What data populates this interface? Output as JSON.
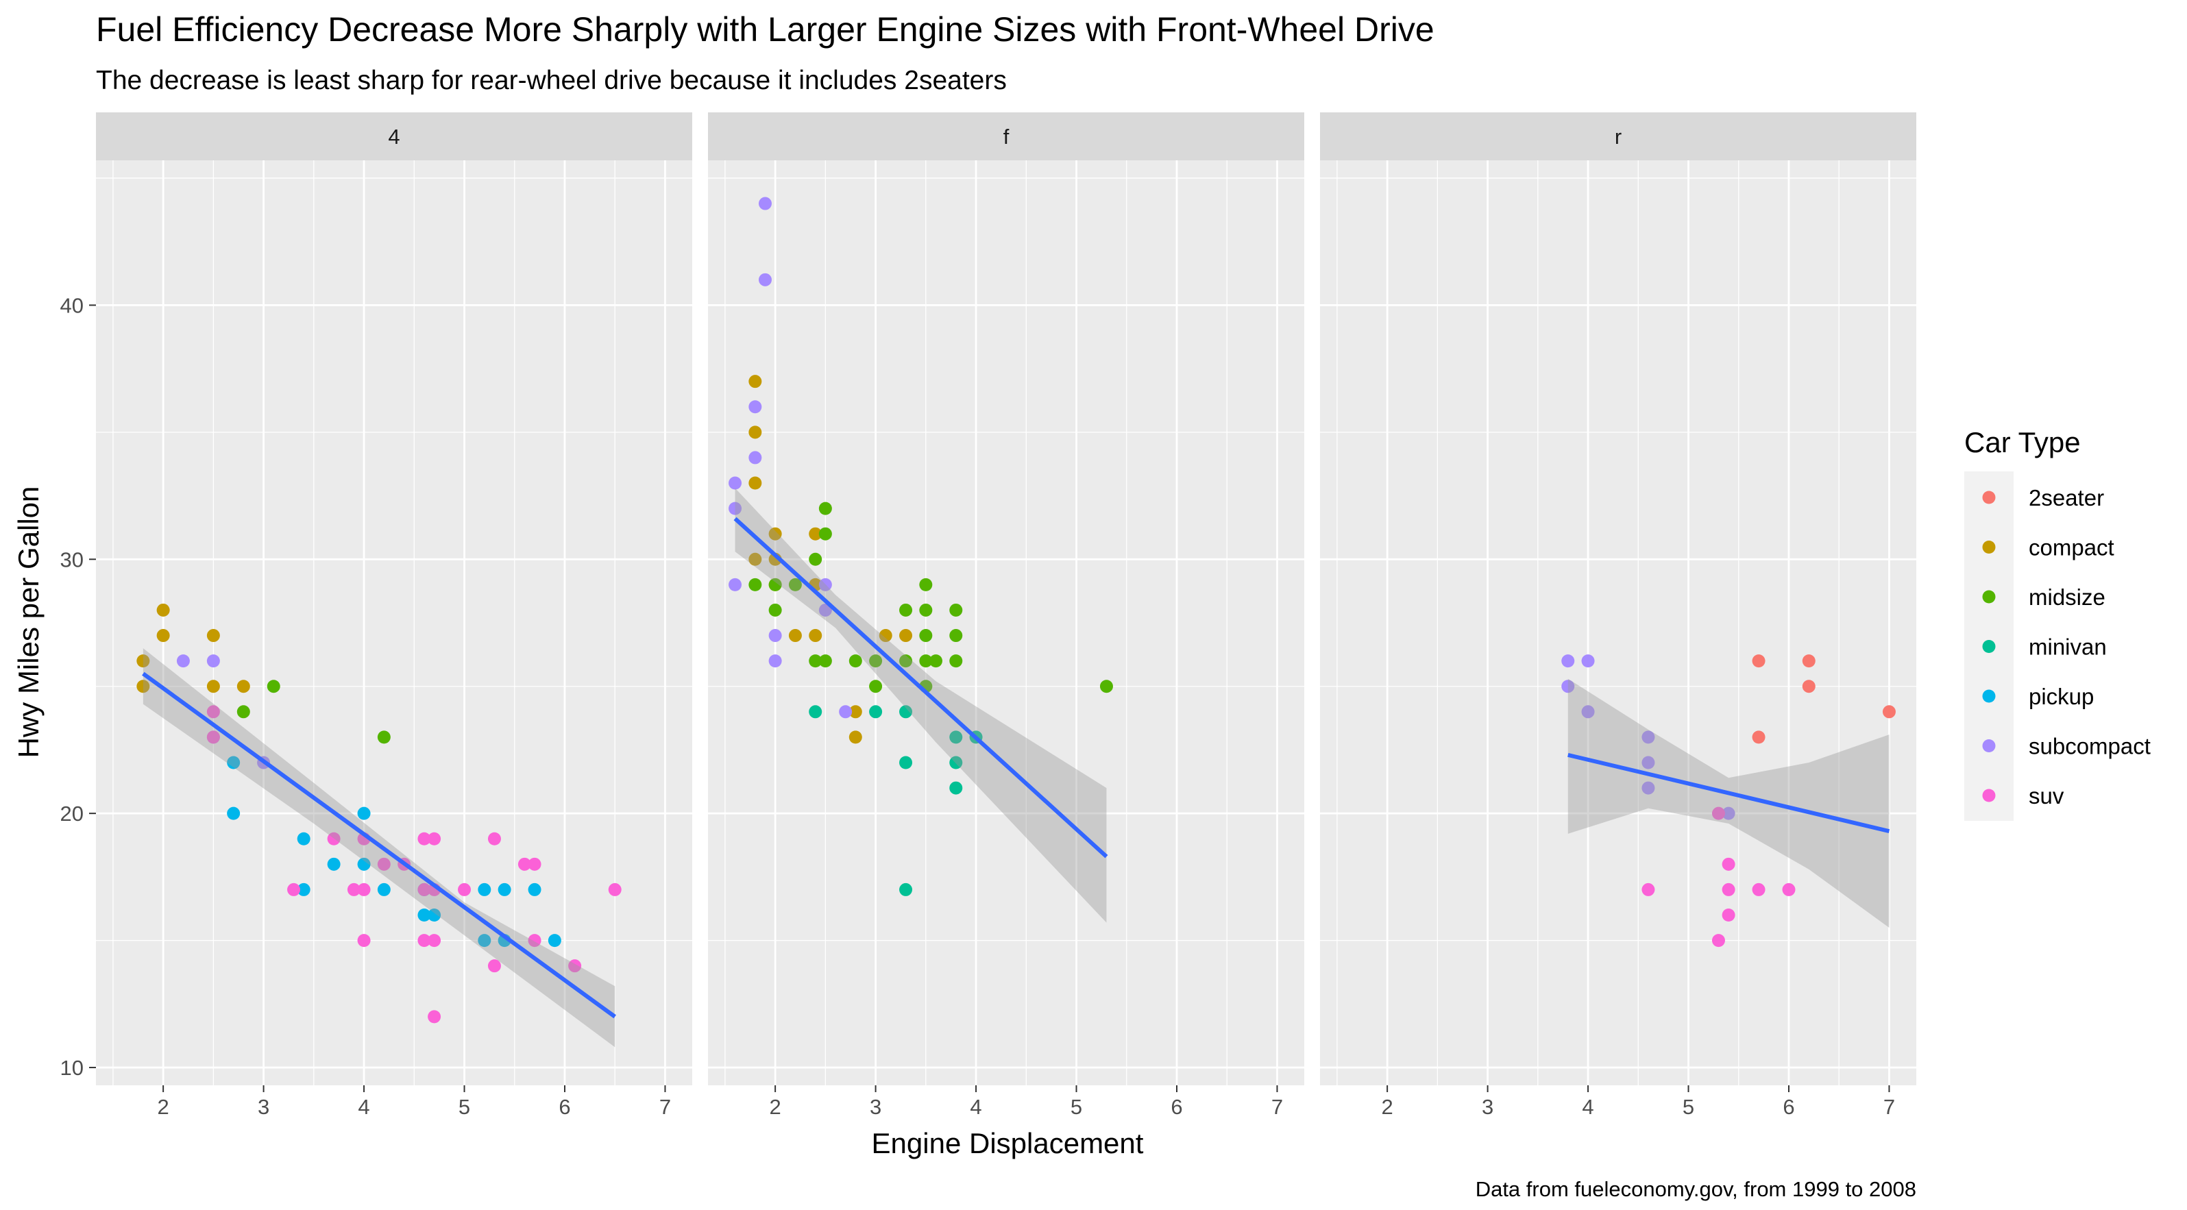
{
  "chart_data": {
    "type": "scatter",
    "title": "Fuel Efficiency Decrease More Sharply with Larger Engine Sizes with Front-Wheel Drive",
    "subtitle": "The decrease is least sharp for rear-wheel drive because it includes 2seaters",
    "xlabel": "Engine Displacement",
    "ylabel": "Hwy Miles per Gallon",
    "caption": "Data from fueleconomy.gov, from 1999 to 2008",
    "xlim": [
      1.33,
      7.27
    ],
    "ylim": [
      9.3,
      45.7
    ],
    "x_ticks": [
      2,
      3,
      4,
      5,
      6,
      7
    ],
    "y_ticks": [
      10,
      20,
      30,
      40
    ],
    "legend": {
      "title": "Car Type",
      "entries": [
        {
          "label": "2seater",
          "color": "#F8766D"
        },
        {
          "label": "compact",
          "color": "#C49A00"
        },
        {
          "label": "midsize",
          "color": "#53B400"
        },
        {
          "label": "minivan",
          "color": "#00C094"
        },
        {
          "label": "pickup",
          "color": "#00B6EB"
        },
        {
          "label": "subcompact",
          "color": "#A58AFF"
        },
        {
          "label": "suv",
          "color": "#FB61D7"
        }
      ]
    },
    "facets": [
      {
        "label": "4",
        "smooth": {
          "color": "#3366FF",
          "line": [
            [
              1.8,
              25.5
            ],
            [
              6.5,
              12.0
            ]
          ],
          "band_upper": [
            [
              1.8,
              26.5
            ],
            [
              3.5,
              21.2
            ],
            [
              5.0,
              16.5
            ],
            [
              6.5,
              13.2
            ]
          ],
          "band_lower": [
            [
              1.8,
              24.3
            ],
            [
              3.5,
              19.6
            ],
            [
              5.0,
              15.2
            ],
            [
              6.5,
              10.8
            ]
          ]
        },
        "points": [
          {
            "x": 1.8,
            "y": 26,
            "class": "compact"
          },
          {
            "x": 1.8,
            "y": 25,
            "class": "compact"
          },
          {
            "x": 2.0,
            "y": 28,
            "class": "compact"
          },
          {
            "x": 2.0,
            "y": 27,
            "class": "compact"
          },
          {
            "x": 2.5,
            "y": 27,
            "class": "compact"
          },
          {
            "x": 2.5,
            "y": 25,
            "class": "compact"
          },
          {
            "x": 2.8,
            "y": 25,
            "class": "compact"
          },
          {
            "x": 2.8,
            "y": 24,
            "class": "midsize"
          },
          {
            "x": 3.1,
            "y": 25,
            "class": "midsize"
          },
          {
            "x": 4.2,
            "y": 23,
            "class": "midsize"
          },
          {
            "x": 2.2,
            "y": 26,
            "class": "subcompact"
          },
          {
            "x": 2.5,
            "y": 26,
            "class": "subcompact"
          },
          {
            "x": 2.5,
            "y": 23,
            "class": "subcompact"
          },
          {
            "x": 3.0,
            "y": 22,
            "class": "subcompact"
          },
          {
            "x": 2.7,
            "y": 22,
            "class": "pickup"
          },
          {
            "x": 2.7,
            "y": 20,
            "class": "pickup"
          },
          {
            "x": 3.4,
            "y": 19,
            "class": "pickup"
          },
          {
            "x": 3.4,
            "y": 17,
            "class": "pickup"
          },
          {
            "x": 3.7,
            "y": 18,
            "class": "pickup"
          },
          {
            "x": 4.0,
            "y": 20,
            "class": "pickup"
          },
          {
            "x": 4.0,
            "y": 18,
            "class": "pickup"
          },
          {
            "x": 4.2,
            "y": 17,
            "class": "pickup"
          },
          {
            "x": 4.6,
            "y": 17,
            "class": "pickup"
          },
          {
            "x": 4.6,
            "y": 16,
            "class": "pickup"
          },
          {
            "x": 4.7,
            "y": 16,
            "class": "pickup"
          },
          {
            "x": 5.2,
            "y": 17,
            "class": "pickup"
          },
          {
            "x": 5.2,
            "y": 15,
            "class": "pickup"
          },
          {
            "x": 5.4,
            "y": 17,
            "class": "pickup"
          },
          {
            "x": 5.4,
            "y": 15,
            "class": "pickup"
          },
          {
            "x": 5.7,
            "y": 17,
            "class": "pickup"
          },
          {
            "x": 5.9,
            "y": 15,
            "class": "pickup"
          },
          {
            "x": 2.5,
            "y": 24,
            "class": "suv"
          },
          {
            "x": 2.5,
            "y": 23,
            "class": "suv"
          },
          {
            "x": 3.3,
            "y": 17,
            "class": "suv"
          },
          {
            "x": 3.7,
            "y": 19,
            "class": "suv"
          },
          {
            "x": 3.9,
            "y": 17,
            "class": "suv"
          },
          {
            "x": 4.0,
            "y": 19,
            "class": "suv"
          },
          {
            "x": 4.0,
            "y": 17,
            "class": "suv"
          },
          {
            "x": 4.0,
            "y": 15,
            "class": "suv"
          },
          {
            "x": 4.2,
            "y": 18,
            "class": "suv"
          },
          {
            "x": 4.4,
            "y": 18,
            "class": "suv"
          },
          {
            "x": 4.6,
            "y": 19,
            "class": "suv"
          },
          {
            "x": 4.6,
            "y": 17,
            "class": "suv"
          },
          {
            "x": 4.6,
            "y": 15,
            "class": "suv"
          },
          {
            "x": 4.7,
            "y": 19,
            "class": "suv"
          },
          {
            "x": 4.7,
            "y": 17,
            "class": "suv"
          },
          {
            "x": 4.7,
            "y": 15,
            "class": "suv"
          },
          {
            "x": 4.7,
            "y": 12,
            "class": "suv"
          },
          {
            "x": 5.0,
            "y": 17,
            "class": "suv"
          },
          {
            "x": 5.3,
            "y": 19,
            "class": "suv"
          },
          {
            "x": 5.3,
            "y": 14,
            "class": "suv"
          },
          {
            "x": 5.6,
            "y": 18,
            "class": "suv"
          },
          {
            "x": 5.7,
            "y": 18,
            "class": "suv"
          },
          {
            "x": 5.7,
            "y": 15,
            "class": "suv"
          },
          {
            "x": 6.1,
            "y": 14,
            "class": "suv"
          },
          {
            "x": 6.5,
            "y": 17,
            "class": "suv"
          }
        ]
      },
      {
        "label": "f",
        "smooth": {
          "color": "#3366FF",
          "line": [
            [
              1.6,
              31.6
            ],
            [
              5.3,
              18.3
            ]
          ],
          "band_upper": [
            [
              1.6,
              32.8
            ],
            [
              2.6,
              28.6
            ],
            [
              3.6,
              25.2
            ],
            [
              5.3,
              21.0
            ]
          ],
          "band_lower": [
            [
              1.6,
              30.3
            ],
            [
              2.6,
              27.3
            ],
            [
              3.6,
              22.8
            ],
            [
              5.3,
              15.7
            ]
          ]
        },
        "points": [
          {
            "x": 1.8,
            "y": 37,
            "class": "compact"
          },
          {
            "x": 1.8,
            "y": 35,
            "class": "compact"
          },
          {
            "x": 1.8,
            "y": 33,
            "class": "compact"
          },
          {
            "x": 1.8,
            "y": 30,
            "class": "compact"
          },
          {
            "x": 2.0,
            "y": 31,
            "class": "compact"
          },
          {
            "x": 2.0,
            "y": 30,
            "class": "compact"
          },
          {
            "x": 2.0,
            "y": 29,
            "class": "compact"
          },
          {
            "x": 2.2,
            "y": 27,
            "class": "compact"
          },
          {
            "x": 2.4,
            "y": 31,
            "class": "compact"
          },
          {
            "x": 2.4,
            "y": 29,
            "class": "compact"
          },
          {
            "x": 2.4,
            "y": 27,
            "class": "compact"
          },
          {
            "x": 2.8,
            "y": 24,
            "class": "compact"
          },
          {
            "x": 2.8,
            "y": 23,
            "class": "compact"
          },
          {
            "x": 3.1,
            "y": 27,
            "class": "compact"
          },
          {
            "x": 3.3,
            "y": 27,
            "class": "compact"
          },
          {
            "x": 1.8,
            "y": 29,
            "class": "midsize"
          },
          {
            "x": 2.0,
            "y": 29,
            "class": "midsize"
          },
          {
            "x": 2.0,
            "y": 28,
            "class": "midsize"
          },
          {
            "x": 2.2,
            "y": 29,
            "class": "midsize"
          },
          {
            "x": 2.4,
            "y": 30,
            "class": "midsize"
          },
          {
            "x": 2.4,
            "y": 26,
            "class": "midsize"
          },
          {
            "x": 2.5,
            "y": 32,
            "class": "midsize"
          },
          {
            "x": 2.5,
            "y": 31,
            "class": "midsize"
          },
          {
            "x": 2.5,
            "y": 26,
            "class": "midsize"
          },
          {
            "x": 2.8,
            "y": 26,
            "class": "midsize"
          },
          {
            "x": 3.0,
            "y": 26,
            "class": "midsize"
          },
          {
            "x": 3.0,
            "y": 25,
            "class": "midsize"
          },
          {
            "x": 3.3,
            "y": 28,
            "class": "midsize"
          },
          {
            "x": 3.3,
            "y": 26,
            "class": "midsize"
          },
          {
            "x": 3.5,
            "y": 29,
            "class": "midsize"
          },
          {
            "x": 3.5,
            "y": 28,
            "class": "midsize"
          },
          {
            "x": 3.5,
            "y": 27,
            "class": "midsize"
          },
          {
            "x": 3.5,
            "y": 26,
            "class": "midsize"
          },
          {
            "x": 3.5,
            "y": 25,
            "class": "midsize"
          },
          {
            "x": 3.6,
            "y": 26,
            "class": "midsize"
          },
          {
            "x": 3.8,
            "y": 28,
            "class": "midsize"
          },
          {
            "x": 3.8,
            "y": 27,
            "class": "midsize"
          },
          {
            "x": 3.8,
            "y": 26,
            "class": "midsize"
          },
          {
            "x": 5.3,
            "y": 25,
            "class": "midsize"
          },
          {
            "x": 2.4,
            "y": 24,
            "class": "minivan"
          },
          {
            "x": 3.0,
            "y": 24,
            "class": "minivan"
          },
          {
            "x": 3.3,
            "y": 24,
            "class": "minivan"
          },
          {
            "x": 3.3,
            "y": 22,
            "class": "minivan"
          },
          {
            "x": 3.3,
            "y": 17,
            "class": "minivan"
          },
          {
            "x": 3.8,
            "y": 23,
            "class": "minivan"
          },
          {
            "x": 3.8,
            "y": 22,
            "class": "minivan"
          },
          {
            "x": 3.8,
            "y": 21,
            "class": "minivan"
          },
          {
            "x": 4.0,
            "y": 23,
            "class": "minivan"
          },
          {
            "x": 1.6,
            "y": 33,
            "class": "subcompact"
          },
          {
            "x": 1.6,
            "y": 32,
            "class": "subcompact"
          },
          {
            "x": 1.6,
            "y": 29,
            "class": "subcompact"
          },
          {
            "x": 1.8,
            "y": 36,
            "class": "subcompact"
          },
          {
            "x": 1.8,
            "y": 34,
            "class": "subcompact"
          },
          {
            "x": 1.9,
            "y": 44,
            "class": "subcompact"
          },
          {
            "x": 1.9,
            "y": 41,
            "class": "subcompact"
          },
          {
            "x": 2.0,
            "y": 27,
            "class": "subcompact"
          },
          {
            "x": 2.0,
            "y": 26,
            "class": "subcompact"
          },
          {
            "x": 2.5,
            "y": 29,
            "class": "subcompact"
          },
          {
            "x": 2.5,
            "y": 28,
            "class": "subcompact"
          },
          {
            "x": 2.7,
            "y": 24,
            "class": "subcompact"
          }
        ]
      },
      {
        "label": "r",
        "smooth": {
          "color": "#3366FF",
          "line": [
            [
              3.8,
              22.3
            ],
            [
              7.0,
              19.3
            ]
          ],
          "band_upper": [
            [
              3.8,
              25.3
            ],
            [
              4.6,
              23.3
            ],
            [
              5.4,
              21.4
            ],
            [
              6.2,
              22.0
            ],
            [
              7.0,
              23.1
            ]
          ],
          "band_lower": [
            [
              3.8,
              19.2
            ],
            [
              4.6,
              20.2
            ],
            [
              5.4,
              19.6
            ],
            [
              6.2,
              17.8
            ],
            [
              7.0,
              15.5
            ]
          ]
        },
        "points": [
          {
            "x": 5.7,
            "y": 26,
            "class": "2seater"
          },
          {
            "x": 5.7,
            "y": 23,
            "class": "2seater"
          },
          {
            "x": 6.2,
            "y": 26,
            "class": "2seater"
          },
          {
            "x": 6.2,
            "y": 25,
            "class": "2seater"
          },
          {
            "x": 7.0,
            "y": 24,
            "class": "2seater"
          },
          {
            "x": 3.8,
            "y": 26,
            "class": "subcompact"
          },
          {
            "x": 3.8,
            "y": 25,
            "class": "subcompact"
          },
          {
            "x": 4.0,
            "y": 26,
            "class": "subcompact"
          },
          {
            "x": 4.0,
            "y": 24,
            "class": "subcompact"
          },
          {
            "x": 4.6,
            "y": 23,
            "class": "subcompact"
          },
          {
            "x": 4.6,
            "y": 22,
            "class": "subcompact"
          },
          {
            "x": 4.6,
            "y": 21,
            "class": "subcompact"
          },
          {
            "x": 5.4,
            "y": 20,
            "class": "subcompact"
          },
          {
            "x": 4.6,
            "y": 17,
            "class": "suv"
          },
          {
            "x": 5.3,
            "y": 20,
            "class": "suv"
          },
          {
            "x": 5.3,
            "y": 15,
            "class": "suv"
          },
          {
            "x": 5.4,
            "y": 18,
            "class": "suv"
          },
          {
            "x": 5.4,
            "y": 17,
            "class": "suv"
          },
          {
            "x": 5.4,
            "y": 16,
            "class": "suv"
          },
          {
            "x": 5.7,
            "y": 17,
            "class": "suv"
          },
          {
            "x": 6.0,
            "y": 17,
            "class": "suv"
          }
        ]
      }
    ]
  }
}
